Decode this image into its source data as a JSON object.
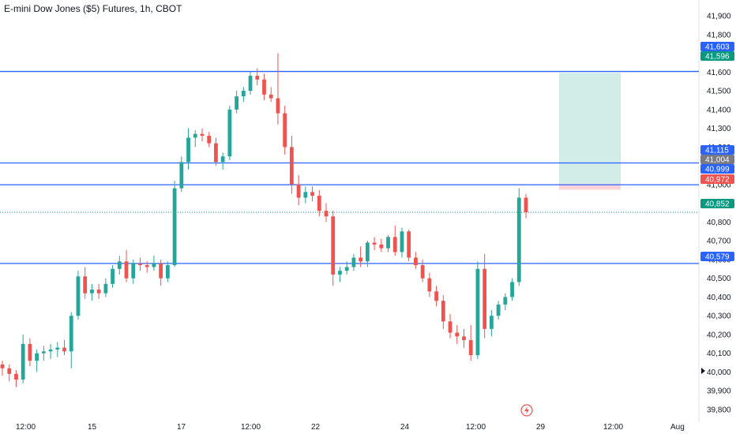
{
  "header": {
    "title": "E-mini Dow Jones ($5) Futures, 1h, CBOT"
  },
  "colors": {
    "up": "#26a69a",
    "down": "#ef5350",
    "level_line": "#2962ff",
    "profit_zone": "#d2ede7",
    "stop_zone": "#fad4d6",
    "last_price": "#089981",
    "axis_text": "#131722",
    "grey_badge": "#787b86"
  },
  "chart_data": {
    "type": "candlestick",
    "symbol": "E-mini Dow Jones ($5) Futures",
    "interval": "1h",
    "exchange": "CBOT",
    "ylim": [
      39750,
      41950
    ],
    "y_ticks": [
      41900,
      41800,
      41700,
      41600,
      41500,
      41400,
      41300,
      41200,
      41100,
      41000,
      40900,
      40800,
      40700,
      40600,
      40500,
      40400,
      40300,
      40200,
      40100,
      40000,
      39900,
      39800
    ],
    "y_tick_labels": [
      "41,900",
      "41,800",
      "41,700",
      "41,600",
      "41,500",
      "41,400",
      "41,300",
      "41,200",
      "41,100",
      "41,000",
      "40,900",
      "40,800",
      "40,700",
      "40,600",
      "40,500",
      "40,400",
      "40,300",
      "40,200",
      "40,100",
      "40,000",
      "39,900",
      "39,800"
    ],
    "x_tick_labels": [
      "12:00",
      "15",
      "17",
      "12:00",
      "22",
      "24",
      "12:00",
      "29",
      "12:00",
      "Aug"
    ],
    "horizontal_levels": [
      41603,
      41115,
      40999,
      40579
    ],
    "price_badges": [
      {
        "label": "41,603",
        "value": 41603,
        "kind": "level"
      },
      {
        "label": "41,596",
        "value": 41596,
        "kind": "target"
      },
      {
        "label": "41,115",
        "value": 41115,
        "kind": "level"
      },
      {
        "label": "41,004",
        "value": 41004,
        "kind": "entry"
      },
      {
        "label": "40,999",
        "value": 40999,
        "kind": "level"
      },
      {
        "label": "40,972",
        "value": 40972,
        "kind": "stop"
      },
      {
        "label": "40,852",
        "value": 40852,
        "kind": "last"
      },
      {
        "label": "40,579",
        "value": 40579,
        "kind": "level"
      }
    ],
    "position": {
      "entry": 41004,
      "target": 41596,
      "stop": 40972
    },
    "last_price": 40852,
    "candles": [
      [
        40040,
        40060,
        39980,
        40020
      ],
      [
        40020,
        40040,
        39950,
        39990
      ],
      [
        39990,
        40010,
        39920,
        39960
      ],
      [
        39960,
        40200,
        39940,
        40150
      ],
      [
        40150,
        40180,
        40030,
        40060
      ],
      [
        40060,
        40120,
        40000,
        40100
      ],
      [
        40100,
        40140,
        40060,
        40110
      ],
      [
        40110,
        40150,
        40070,
        40120
      ],
      [
        40120,
        40160,
        40080,
        40130
      ],
      [
        40130,
        40170,
        40090,
        40110
      ],
      [
        40110,
        40320,
        40020,
        40300
      ],
      [
        40300,
        40540,
        40280,
        40510
      ],
      [
        40510,
        40560,
        40390,
        40420
      ],
      [
        40420,
        40470,
        40380,
        40440
      ],
      [
        40440,
        40470,
        40390,
        40420
      ],
      [
        40420,
        40500,
        40400,
        40470
      ],
      [
        40470,
        40570,
        40450,
        40550
      ],
      [
        40550,
        40620,
        40520,
        40590
      ],
      [
        40590,
        40650,
        40480,
        40500
      ],
      [
        40500,
        40600,
        40470,
        40580
      ],
      [
        40580,
        40610,
        40540,
        40570
      ],
      [
        40570,
        40590,
        40530,
        40560
      ],
      [
        40560,
        40620,
        40540,
        40580
      ],
      [
        40580,
        40600,
        40460,
        40500
      ],
      [
        40500,
        40590,
        40480,
        40570
      ],
      [
        40570,
        41020,
        40560,
        40980
      ],
      [
        40980,
        41150,
        40960,
        41120
      ],
      [
        41120,
        41300,
        41080,
        41250
      ],
      [
        41250,
        41290,
        41200,
        41270
      ],
      [
        41270,
        41300,
        41230,
        41260
      ],
      [
        41260,
        41280,
        41200,
        41220
      ],
      [
        41220,
        41250,
        41100,
        41120
      ],
      [
        41120,
        41170,
        41080,
        41150
      ],
      [
        41150,
        41420,
        41130,
        41400
      ],
      [
        41400,
        41500,
        41380,
        41470
      ],
      [
        41470,
        41520,
        41440,
        41500
      ],
      [
        41500,
        41600,
        41480,
        41580
      ],
      [
        41580,
        41620,
        41530,
        41560
      ],
      [
        41560,
        41590,
        41450,
        41480
      ],
      [
        41480,
        41520,
        41440,
        41460
      ],
      [
        41460,
        41700,
        41320,
        41380
      ],
      [
        41380,
        41420,
        41160,
        41200
      ],
      [
        41200,
        41260,
        40950,
        41000
      ],
      [
        41000,
        41050,
        40890,
        40930
      ],
      [
        40930,
        40990,
        40900,
        40960
      ],
      [
        40960,
        40990,
        40910,
        40940
      ],
      [
        40940,
        40970,
        40830,
        40860
      ],
      [
        40860,
        40900,
        40800,
        40830
      ],
      [
        40830,
        40860,
        40460,
        40520
      ],
      [
        40520,
        40560,
        40480,
        40540
      ],
      [
        40540,
        40590,
        40520,
        40560
      ],
      [
        40560,
        40630,
        40540,
        40610
      ],
      [
        40610,
        40670,
        40560,
        40590
      ],
      [
        40590,
        40700,
        40560,
        40690
      ],
      [
        40690,
        40720,
        40650,
        40680
      ],
      [
        40680,
        40710,
        40640,
        40660
      ],
      [
        40660,
        40730,
        40640,
        40720
      ],
      [
        40720,
        40780,
        40620,
        40640
      ],
      [
        40640,
        40770,
        40610,
        40750
      ],
      [
        40750,
        40760,
        40590,
        40610
      ],
      [
        40610,
        40640,
        40550,
        40570
      ],
      [
        40570,
        40600,
        40480,
        40500
      ],
      [
        40500,
        40530,
        40400,
        40430
      ],
      [
        40430,
        40460,
        40350,
        40380
      ],
      [
        40380,
        40410,
        40230,
        40270
      ],
      [
        40270,
        40310,
        40180,
        40210
      ],
      [
        40210,
        40250,
        40150,
        40190
      ],
      [
        40190,
        40230,
        40130,
        40170
      ],
      [
        40170,
        40250,
        40060,
        40090
      ],
      [
        40090,
        40590,
        40070,
        40550
      ],
      [
        40550,
        40630,
        40180,
        40230
      ],
      [
        40230,
        40330,
        40190,
        40300
      ],
      [
        40300,
        40380,
        40280,
        40360
      ],
      [
        40360,
        40420,
        40330,
        40400
      ],
      [
        40400,
        40500,
        40380,
        40480
      ],
      [
        40480,
        40980,
        40460,
        40930
      ],
      [
        40930,
        40950,
        40820,
        40852
      ]
    ]
  }
}
